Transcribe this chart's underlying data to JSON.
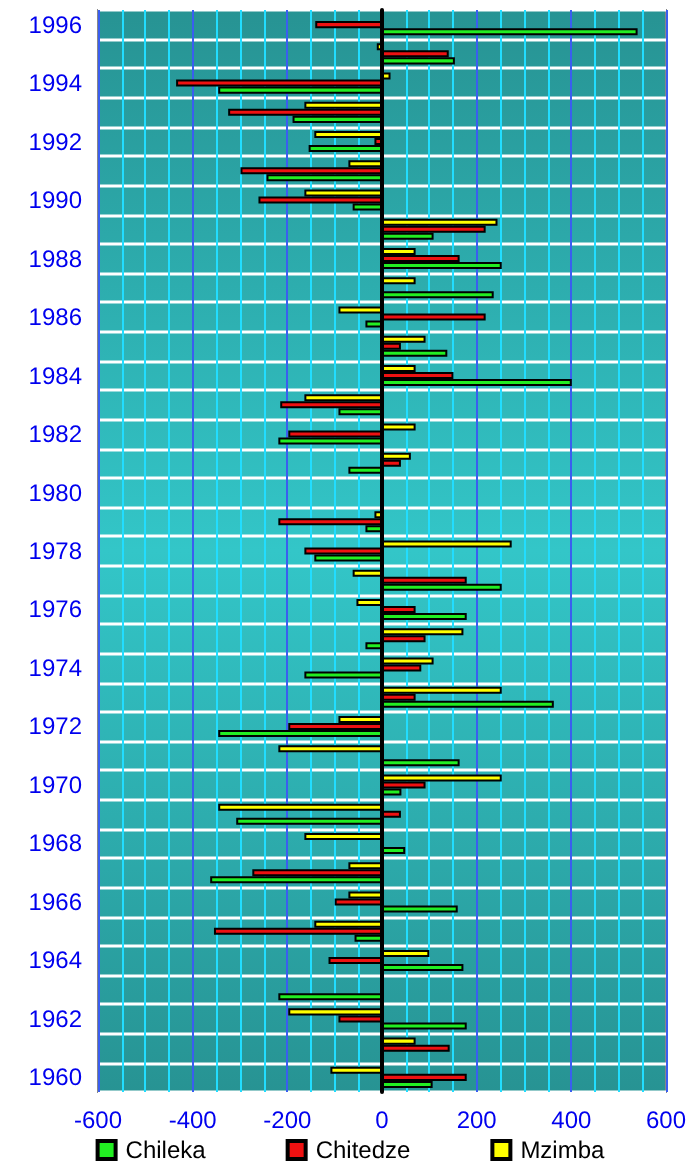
{
  "chart_data": {
    "type": "bar",
    "orientation": "horizontal",
    "categories": [
      "1996",
      null,
      "1994",
      null,
      "1992",
      null,
      "1990",
      null,
      "1988",
      null,
      "1986",
      null,
      "1984",
      null,
      "1982",
      null,
      "1980",
      null,
      "1978",
      null,
      "1976",
      null,
      "1974",
      null,
      "1972",
      null,
      "1970",
      null,
      "1968",
      null,
      "1966",
      null,
      "1964",
      null,
      "1962",
      null,
      "1960"
    ],
    "series": [
      {
        "name": "Chileka",
        "color": "#22ee22",
        "values": [
          540,
          154,
          -346,
          -189,
          -155,
          -244,
          -62,
          109,
          253,
          236,
          -35,
          138,
          401,
          -92,
          -219,
          -71,
          null,
          -35,
          -143,
          253,
          179,
          -35,
          -164,
          363,
          -346,
          164,
          41,
          -308,
          49,
          -363,
          160,
          -58,
          172,
          -219,
          179,
          null,
          107
        ]
      },
      {
        "name": "Chitedze",
        "color": "#ee1111",
        "values": [
          -141,
          141,
          -435,
          -325,
          -16,
          -299,
          -261,
          219,
          164,
          null,
          219,
          40,
          151,
          -215,
          -198,
          40,
          null,
          -219,
          -164,
          179,
          71,
          92,
          83,
          71,
          -198,
          null,
          92,
          40,
          null,
          -274,
          -100,
          -355,
          -113,
          null,
          -92,
          143,
          179
        ]
      },
      {
        "name": "Mzimba",
        "color": "#ffff00",
        "values": [
          null,
          -11,
          18,
          -164,
          -143,
          -71,
          -164,
          244,
          71,
          71,
          -92,
          92,
          71,
          -164,
          71,
          61,
          null,
          -16,
          274,
          -62,
          -54,
          172,
          109,
          253,
          -92,
          -219,
          253,
          -346,
          -164,
          -71,
          -71,
          -143,
          100,
          null,
          -198,
          71,
          -109
        ]
      }
    ],
    "xlim": [
      -600,
      600
    ],
    "xticks": [
      -600,
      {
        "value": -550,
        "label": null
      },
      {
        "value": -500,
        "label": null
      },
      {
        "value": -450,
        "label": null
      },
      -400,
      {
        "value": -350,
        "label": null
      },
      {
        "value": -300,
        "label": null
      },
      {
        "value": -250,
        "label": null
      },
      -200,
      {
        "value": -150,
        "label": null
      },
      {
        "value": -100,
        "label": null
      },
      {
        "value": -50,
        "label": null
      },
      0,
      {
        "value": 50,
        "label": null
      },
      {
        "value": 100,
        "label": null
      },
      {
        "value": 150,
        "label": null
      },
      200,
      {
        "value": 250,
        "label": null
      },
      {
        "value": 300,
        "label": null
      },
      {
        "value": 350,
        "label": null
      },
      400,
      {
        "value": 450,
        "label": null
      },
      {
        "value": 500,
        "label": null
      },
      {
        "value": 550,
        "label": null
      },
      600
    ],
    "grid": true,
    "legend": "bottom"
  }
}
